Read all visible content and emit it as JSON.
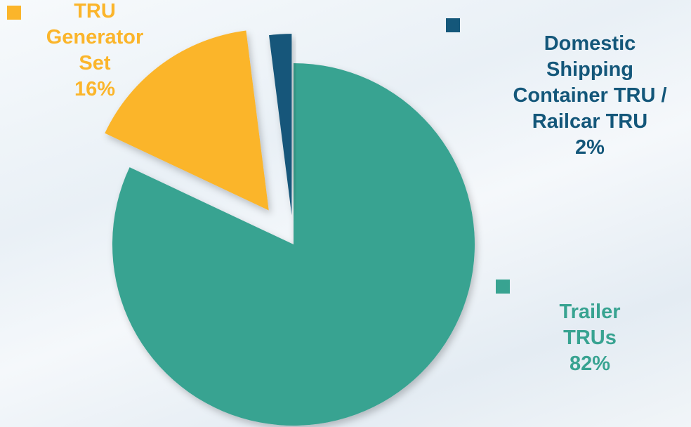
{
  "chart_data": {
    "type": "pie",
    "slices": [
      {
        "name": "Trailer TRUs",
        "value": 82,
        "label_lines": [
          "Trailer",
          "TRUs"
        ],
        "pct_label": "82%",
        "color": "#38a391"
      },
      {
        "name": "TRU Generator Set",
        "value": 16,
        "label_lines": [
          "TRU",
          "Generator",
          "Set"
        ],
        "pct_label": "16%",
        "color": "#fbb52b"
      },
      {
        "name": "Domestic Shipping Container TRU / Railcar TRU",
        "value": 2,
        "label_lines": [
          "Domestic",
          "Shipping",
          "Container TRU /",
          "Railcar TRU"
        ],
        "pct_label": "2%",
        "color": "#14577a"
      }
    ]
  },
  "labels": {
    "generator": "TRU\nGenerator\nSet",
    "generator_pct": "16%",
    "domestic": "Domestic\nShipping\nContainer TRU /\nRailcar TRU",
    "domestic_pct": "2%",
    "trailer": "Trailer\nTRUs",
    "trailer_pct": "82%"
  },
  "colors": {
    "trailer": "#38a391",
    "generator": "#fbb52b",
    "domestic": "#14577a",
    "background": "#eef3f7"
  }
}
